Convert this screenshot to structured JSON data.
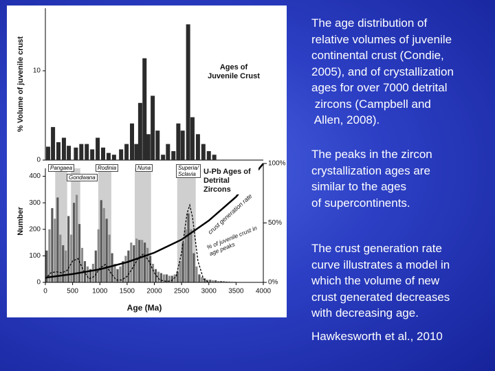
{
  "chart_data": [
    {
      "type": "bar",
      "title": "Ages of Juvenile Crust",
      "ylabel": "% Volume of juvenile crust",
      "x": [
        50,
        140,
        240,
        340,
        430,
        560,
        660,
        760,
        860,
        960,
        1060,
        1160,
        1260,
        1390,
        1490,
        1590,
        1670,
        1740,
        1820,
        1890,
        1970,
        2060,
        2160,
        2250,
        2350,
        2440,
        2520,
        2620,
        2700,
        2800,
        2900,
        3000,
        3100
      ],
      "values": [
        1.5,
        3.7,
        2,
        2.5,
        1.6,
        1.4,
        1.8,
        1.8,
        1.2,
        2.5,
        1.4,
        0.8,
        0.6,
        1.2,
        1.8,
        4.1,
        1.8,
        6.4,
        11.4,
        2.9,
        7.2,
        3.3,
        0.6,
        1.8,
        1,
        4.1,
        3.3,
        15.2,
        4.8,
        2.9,
        1.8,
        1,
        0.6
      ],
      "color": "#2b2b2b",
      "xlim": [
        0,
        4000
      ],
      "ylim": [
        0,
        17
      ],
      "yticks": [
        0,
        10
      ]
    },
    {
      "type": "histogram",
      "title": "U-Pb Ages of Detrital Zircons",
      "xlabel": "Age (Ma)",
      "ylabel": "Number",
      "bins": [
        0,
        50,
        100,
        150,
        200,
        250,
        300,
        350,
        400,
        450,
        500,
        550,
        600,
        650,
        700,
        750,
        800,
        850,
        900,
        950,
        1000,
        1050,
        1100,
        1150,
        1200,
        1250,
        1300,
        1350,
        1400,
        1450,
        1500,
        1550,
        1600,
        1650,
        1700,
        1750,
        1800,
        1850,
        1900,
        1950,
        2000,
        2050,
        2100,
        2150,
        2200,
        2250,
        2300,
        2350,
        2400,
        2450,
        2500,
        2550,
        2600,
        2650,
        2700,
        2750,
        2800,
        2850,
        2900,
        2950,
        3000,
        3050,
        3100,
        3150,
        3200,
        3250,
        3300,
        3350,
        3400,
        3450,
        3500
      ],
      "values": [
        120,
        200,
        280,
        240,
        320,
        180,
        140,
        120,
        250,
        180,
        300,
        330,
        220,
        130,
        80,
        60,
        50,
        70,
        120,
        200,
        310,
        280,
        240,
        180,
        110,
        70,
        50,
        60,
        80,
        100,
        120,
        150,
        140,
        165,
        160,
        160,
        150,
        130,
        100,
        70,
        50,
        40,
        35,
        30,
        30,
        25,
        25,
        30,
        40,
        80,
        150,
        200,
        260,
        200,
        110,
        60,
        30,
        20,
        15,
        10,
        10,
        8,
        8,
        5,
        5,
        5,
        3,
        3,
        2,
        2
      ],
      "color": "#8a8a8a",
      "xlim": [
        0,
        4000
      ],
      "xticks": [
        0,
        500,
        1000,
        1500,
        2000,
        2500,
        3000,
        3500,
        4000
      ],
      "ylim": [
        0,
        430
      ],
      "yticks": [
        0,
        100,
        200,
        300,
        400
      ],
      "y2lim": [
        0,
        100
      ],
      "y2ticks": [
        {
          "value": 0,
          "label": "0%"
        },
        {
          "value": 50,
          "label": "50%"
        },
        {
          "value": 100,
          "label": "100%"
        }
      ],
      "supercontinents": [
        "Pangaea",
        "Gondwana",
        "Rodinia",
        "Nuna",
        "Superia/ Sclavia"
      ],
      "series": [
        {
          "name": "crust generation rate",
          "axis": "y2",
          "color": "#000000",
          "style": "solid",
          "x": [
            0,
            500,
            1000,
            1500,
            2000,
            2500,
            3000,
            3500,
            4000
          ],
          "values": [
            4,
            7,
            11,
            17,
            25,
            36,
            52,
            72,
            100
          ]
        },
        {
          "name": "% of juvenile crust in age peaks",
          "axis": "y2",
          "color": "#000000",
          "style": "dashed",
          "x": [
            0,
            100,
            200,
            300,
            400,
            500,
            600,
            700,
            800,
            900,
            1000,
            1100,
            1200,
            1300,
            1400,
            1500,
            1600,
            1700,
            1800,
            1900,
            2000,
            2100,
            2200,
            2300,
            2400,
            2500,
            2600,
            2650,
            2700,
            2800,
            2900,
            3000
          ],
          "values": [
            3,
            8,
            9,
            8,
            10,
            18,
            20,
            10,
            3,
            5,
            12,
            15,
            8,
            2,
            2,
            5,
            12,
            20,
            24,
            18,
            8,
            2,
            1,
            1,
            5,
            25,
            58,
            65,
            55,
            18,
            3,
            0
          ]
        }
      ]
    }
  ],
  "slide": {
    "paragraphs": [
      [
        "The age distribution of",
        "relative volumes of juvenile",
        "continental crust (Condie,",
        "2005), and of crystallization",
        "ages for over 7000 detrital",
        " zircons (Campbell and",
        " Allen, 2008)."
      ],
      [
        "The peaks in the zircon",
        "crystallization ages are",
        "similar to the ages",
        "of supercontinents."
      ],
      [
        "The crust generation rate",
        "curve illustrates a model in",
        "which the volume of new",
        "crust generated decreases",
        "with decreasing age."
      ],
      [
        "Hawkesworth et al., 2010"
      ]
    ]
  }
}
